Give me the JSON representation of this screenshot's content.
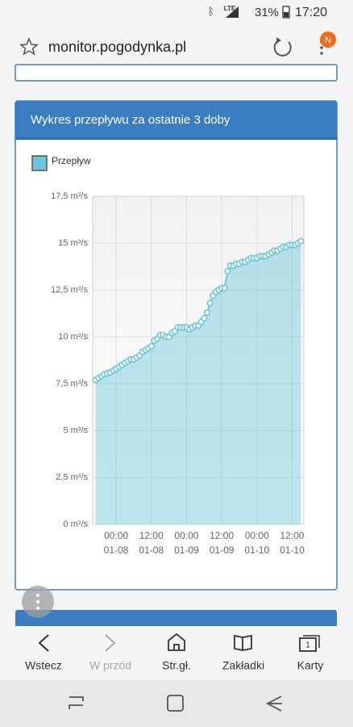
{
  "status_bar": {
    "network": "LTE",
    "battery": "31%",
    "time": "17:20"
  },
  "browser": {
    "url": "monitor.pogodynka.pl",
    "badge": "N"
  },
  "chart_data": {
    "type": "line",
    "title": "Wykres przepływu za ostatnie 3 doby",
    "x": [
      "01-07 17:00",
      "01-07 18:00",
      "01-07 19:00",
      "01-07 20:00",
      "01-07 21:00",
      "01-07 22:00",
      "01-07 23:00",
      "01-08 00:00",
      "01-08 01:00",
      "01-08 02:00",
      "01-08 03:00",
      "01-08 04:00",
      "01-08 05:00",
      "01-08 06:00",
      "01-08 07:00",
      "01-08 08:00",
      "01-08 09:00",
      "01-08 10:00",
      "01-08 11:00",
      "01-08 12:00",
      "01-08 13:00",
      "01-08 14:00",
      "01-08 15:00",
      "01-08 16:00",
      "01-08 17:00",
      "01-08 18:00",
      "01-08 19:00",
      "01-08 20:00",
      "01-08 21:00",
      "01-08 22:00",
      "01-08 23:00",
      "01-09 00:00",
      "01-09 01:00",
      "01-09 02:00",
      "01-09 03:00",
      "01-09 04:00",
      "01-09 05:00",
      "01-09 06:00",
      "01-09 07:00",
      "01-09 08:00",
      "01-09 09:00",
      "01-09 10:00",
      "01-09 11:00",
      "01-09 12:00",
      "01-09 13:00",
      "01-09 14:00",
      "01-09 15:00",
      "01-09 16:00",
      "01-09 17:00",
      "01-09 18:00",
      "01-09 19:00",
      "01-09 20:00",
      "01-09 21:00",
      "01-09 22:00",
      "01-09 23:00",
      "01-10 00:00",
      "01-10 01:00",
      "01-10 02:00",
      "01-10 03:00",
      "01-10 04:00",
      "01-10 05:00",
      "01-10 06:00",
      "01-10 07:00",
      "01-10 08:00",
      "01-10 09:00",
      "01-10 10:00",
      "01-10 11:00",
      "01-10 12:00",
      "01-10 13:00",
      "01-10 14:00",
      "01-10 15:00"
    ],
    "series": [
      {
        "name": "Przepływ",
        "color": "#6cc5d9",
        "values": [
          7.7,
          7.8,
          7.9,
          8.0,
          8.05,
          8.1,
          8.2,
          8.3,
          8.4,
          8.5,
          8.6,
          8.7,
          8.8,
          8.8,
          8.9,
          9.0,
          9.2,
          9.3,
          9.4,
          9.5,
          9.8,
          9.9,
          10.1,
          10.1,
          10.0,
          10.0,
          10.2,
          10.3,
          10.5,
          10.5,
          10.5,
          10.5,
          10.4,
          10.5,
          10.6,
          10.6,
          10.8,
          11.0,
          11.3,
          11.8,
          12.2,
          12.4,
          12.5,
          12.6,
          12.6,
          13.5,
          13.8,
          13.8,
          13.9,
          13.9,
          14.0,
          14.0,
          14.1,
          14.2,
          14.2,
          14.2,
          14.3,
          14.3,
          14.3,
          14.4,
          14.5,
          14.6,
          14.6,
          14.7,
          14.8,
          14.8,
          14.9,
          14.9,
          14.9,
          15.0,
          15.1
        ]
      }
    ],
    "xlim": [
      "01-07 16:00",
      "01-10 16:00"
    ],
    "xticks": [
      {
        "value": "01-08 00:00",
        "label": [
          "00:00",
          "01-08"
        ]
      },
      {
        "value": "01-08 12:00",
        "label": [
          "12:00",
          "01-08"
        ]
      },
      {
        "value": "01-09 00:00",
        "label": [
          "00:00",
          "01-09"
        ]
      },
      {
        "value": "01-09 12:00",
        "label": [
          "12:00",
          "01-09"
        ]
      },
      {
        "value": "01-10 00:00",
        "label": [
          "00:00",
          "01-10"
        ]
      },
      {
        "value": "01-10 12:00",
        "label": [
          "12:00",
          "01-10"
        ]
      }
    ],
    "ylim": [
      0,
      17.5
    ],
    "yticks": [
      {
        "value": 0,
        "label": "0 m³/s"
      },
      {
        "value": 2.5,
        "label": "2,5 m³/s"
      },
      {
        "value": 5,
        "label": "5 m³/s"
      },
      {
        "value": 7.5,
        "label": "7,5 m³/s"
      },
      {
        "value": 10,
        "label": "10 m³/s"
      },
      {
        "value": 12.5,
        "label": "12,5 m³/s"
      },
      {
        "value": 15,
        "label": "15 m³/s"
      },
      {
        "value": 17.5,
        "label": "17,5 m³/s"
      }
    ],
    "grid": true
  },
  "bottom_nav": {
    "items": [
      "Wstecz",
      "W przód",
      "Str.gł.",
      "Zakładki",
      "Karty"
    ],
    "tabs_count": "1"
  }
}
